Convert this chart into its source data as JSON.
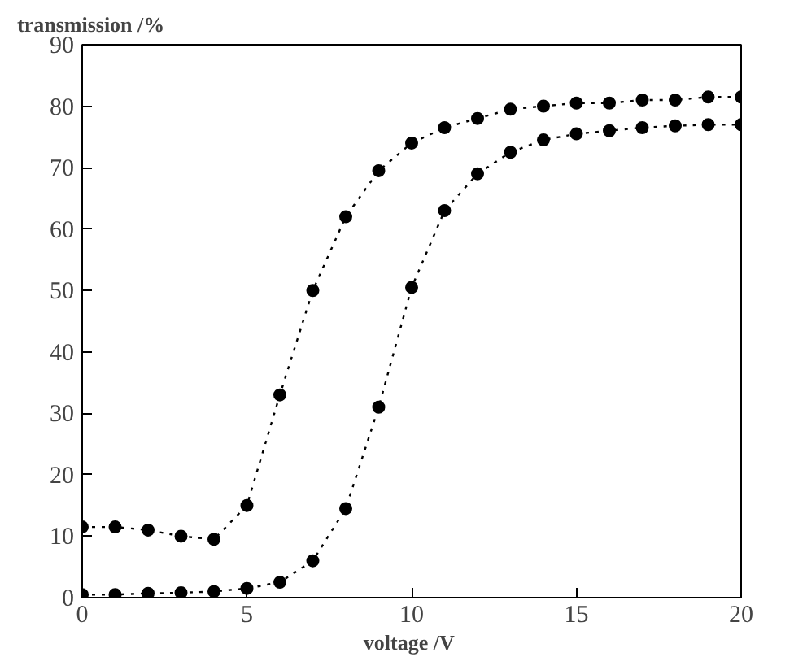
{
  "chart_data": {
    "type": "line",
    "xlabel": "voltage  /V",
    "ylabel": "transmission  /%",
    "x": [
      0,
      1,
      2,
      3,
      4,
      5,
      6,
      7,
      8,
      9,
      10,
      11,
      12,
      13,
      14,
      15,
      16,
      17,
      18,
      19,
      20
    ],
    "series": [
      {
        "color": "#000000",
        "values": [
          0.5,
          0.5,
          0.7,
          0.8,
          1,
          1.5,
          2.5,
          6,
          14.5,
          31,
          50.5,
          63,
          69,
          72.5,
          74.5,
          75.5,
          76,
          76.5,
          76.8,
          77,
          77
        ]
      },
      {
        "color": "#000000",
        "values": [
          11.5,
          11.5,
          11,
          10,
          9.5,
          15,
          33,
          50,
          62,
          69.5,
          74,
          76.5,
          78,
          79.5,
          80,
          80.5,
          80.5,
          81,
          81,
          81.5,
          81.5
        ]
      }
    ],
    "xlim": [
      0,
      20
    ],
    "ylim": [
      0,
      90
    ],
    "xticks": [
      0,
      5,
      10,
      15,
      20
    ],
    "yticks": [
      0,
      10,
      20,
      30,
      40,
      50,
      60,
      70,
      80,
      90
    ],
    "grid": false,
    "marker": "circle",
    "line_style": "dotted"
  }
}
